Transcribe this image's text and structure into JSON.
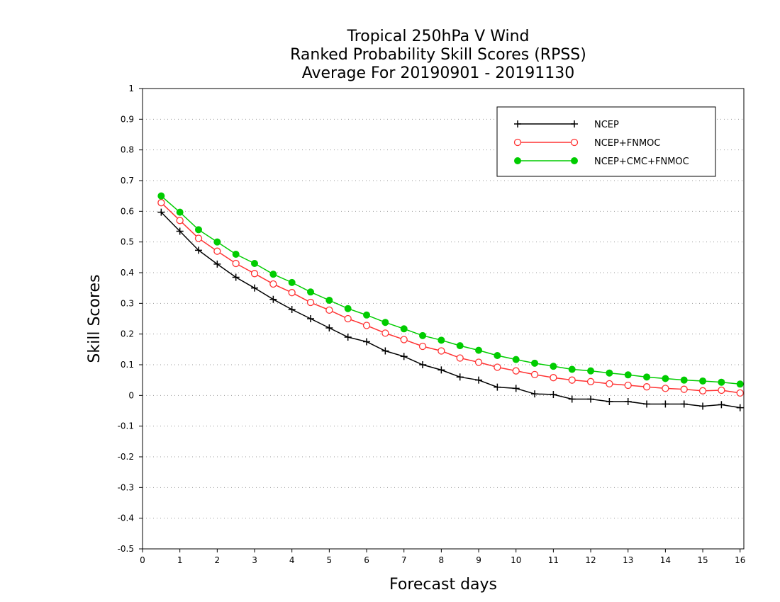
{
  "chart_data": {
    "type": "line",
    "title_lines": [
      "Tropical 250hPa V Wind",
      "Ranked Probability Skill Scores (RPSS)",
      "Average For 20190901 - 20191130"
    ],
    "xlabel": "Forecast days",
    "ylabel": "Skill Scores",
    "xlim": [
      0,
      16.1
    ],
    "ylim": [
      -0.5,
      1
    ],
    "xticks": [
      0,
      1,
      2,
      3,
      4,
      5,
      6,
      7,
      8,
      9,
      10,
      11,
      12,
      13,
      14,
      15,
      16
    ],
    "yticks": [
      -0.5,
      -0.4,
      -0.3,
      -0.2,
      -0.1,
      0,
      0.1,
      0.2,
      0.3,
      0.4,
      0.5,
      0.6,
      0.7,
      0.8,
      0.9,
      1
    ],
    "grid": "horizontal dotted",
    "legend_position": "top-right",
    "x": [
      0.5,
      1,
      1.5,
      2,
      2.5,
      3,
      3.5,
      4,
      4.5,
      5,
      5.5,
      6,
      6.5,
      7,
      7.5,
      8,
      8.5,
      9,
      9.5,
      10,
      10.5,
      11,
      11.5,
      12,
      12.5,
      13,
      13.5,
      14,
      14.5,
      15,
      15.5,
      16
    ],
    "series": [
      {
        "name": "NCEP",
        "color": "#000000",
        "marker": "plus",
        "values": [
          0.597,
          0.535,
          0.473,
          0.428,
          0.385,
          0.35,
          0.313,
          0.28,
          0.25,
          0.22,
          0.19,
          0.175,
          0.145,
          0.127,
          0.1,
          0.083,
          0.06,
          0.05,
          0.027,
          0.023,
          0.005,
          0.003,
          -0.012,
          -0.012,
          -0.02,
          -0.02,
          -0.028,
          -0.028,
          -0.028,
          -0.035,
          -0.03,
          -0.04
        ]
      },
      {
        "name": "NCEP+FNMOC",
        "color": "#ff3333",
        "marker": "open-circle",
        "values": [
          0.628,
          0.57,
          0.512,
          0.47,
          0.43,
          0.397,
          0.363,
          0.335,
          0.303,
          0.278,
          0.25,
          0.228,
          0.203,
          0.182,
          0.16,
          0.145,
          0.122,
          0.108,
          0.092,
          0.08,
          0.068,
          0.058,
          0.05,
          0.045,
          0.038,
          0.033,
          0.028,
          0.023,
          0.02,
          0.015,
          0.017,
          0.008
        ]
      },
      {
        "name": "NCEP+CMC+FNMOC",
        "color": "#00cc00",
        "marker": "filled-circle",
        "values": [
          0.65,
          0.597,
          0.54,
          0.5,
          0.46,
          0.43,
          0.395,
          0.368,
          0.337,
          0.31,
          0.283,
          0.262,
          0.238,
          0.217,
          0.195,
          0.18,
          0.162,
          0.147,
          0.13,
          0.117,
          0.105,
          0.095,
          0.085,
          0.08,
          0.073,
          0.067,
          0.06,
          0.055,
          0.05,
          0.047,
          0.043,
          0.037
        ]
      }
    ]
  }
}
